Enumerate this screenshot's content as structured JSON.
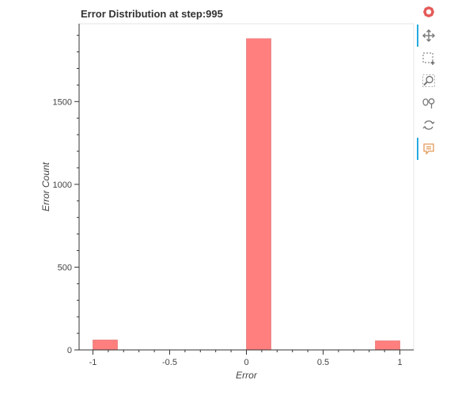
{
  "chart_data": {
    "type": "bar",
    "title": "Error Distribution at step:995",
    "xlabel": "Error",
    "ylabel": "Error Count",
    "x_ticks": [
      -1,
      -0.5,
      0,
      0.5,
      1
    ],
    "x_tick_labels": [
      "-1",
      "-0.5",
      "0",
      "0.5",
      "1"
    ],
    "y_ticks": [
      0,
      500,
      1000,
      1500
    ],
    "y_tick_labels": [
      "0",
      "500",
      "1000",
      "1500"
    ],
    "xlim": [
      -1.09,
      1.09
    ],
    "ylim": [
      0,
      1970
    ],
    "bars": [
      {
        "x0": -1.0,
        "x1": -0.84,
        "value": 60
      },
      {
        "x0": 0.0,
        "x1": 0.16,
        "value": 1880
      },
      {
        "x0": 0.84,
        "x1": 1.0,
        "value": 55
      }
    ],
    "bar_color": "#ff7f7f",
    "grid": false
  },
  "toolbar": {
    "tools": [
      "bokeh-logo-icon",
      "pan-icon",
      "box-zoom-icon",
      "wheel-zoom-icon",
      "lasso-select-icon",
      "reset-icon",
      "hover-icon"
    ]
  }
}
